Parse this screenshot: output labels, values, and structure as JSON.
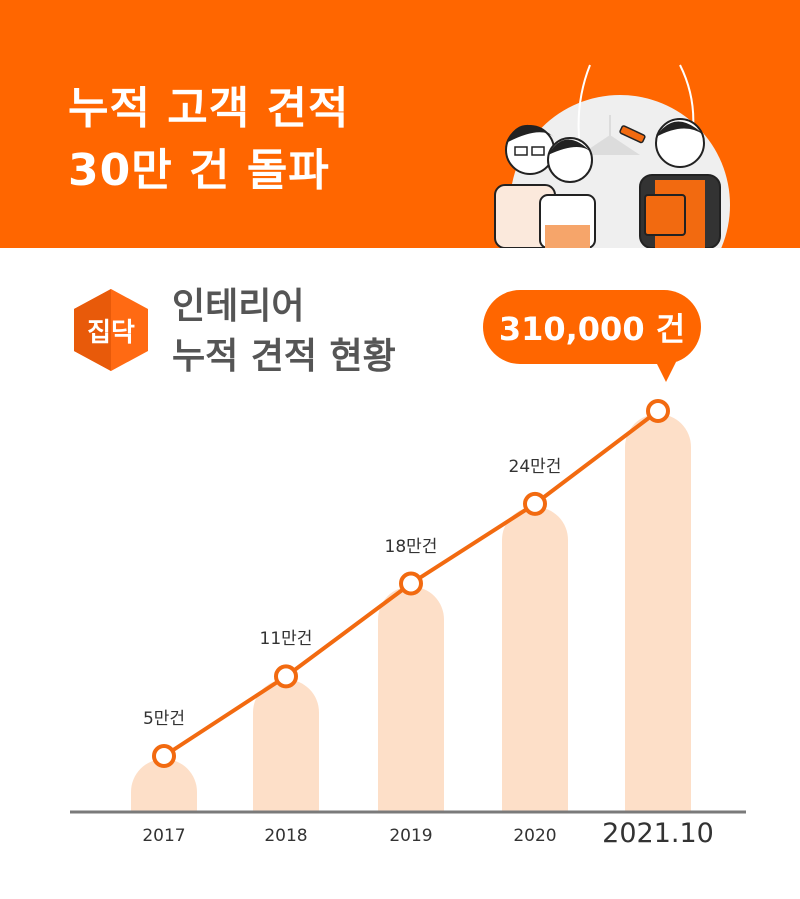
{
  "banner": {
    "headline_line1": "누적 고객 견적",
    "headline_line2": "30만 건 돌파",
    "background_color": "#ff6600",
    "illustration": "three-people-cartoon-illustration"
  },
  "section": {
    "logo_text": "집닥",
    "title_line1": "인테리어",
    "title_line2": "누적 견적 현황",
    "highlight_bubble": "310,000 건"
  },
  "chart_data": {
    "type": "bar",
    "title": "인테리어 누적 견적 현황",
    "categories": [
      "2017",
      "2018",
      "2019",
      "2020",
      "2021.10"
    ],
    "values": [
      50000,
      110000,
      180000,
      240000,
      310000
    ],
    "data_labels": [
      "5만건",
      "11만건",
      "18만건",
      "24만건",
      "310,000 건"
    ],
    "overlay_line": true,
    "xlabel": "",
    "ylabel": "",
    "grid": false,
    "legend": "none",
    "bar_color": "#fddfc8",
    "line_color": "#f26a10"
  }
}
